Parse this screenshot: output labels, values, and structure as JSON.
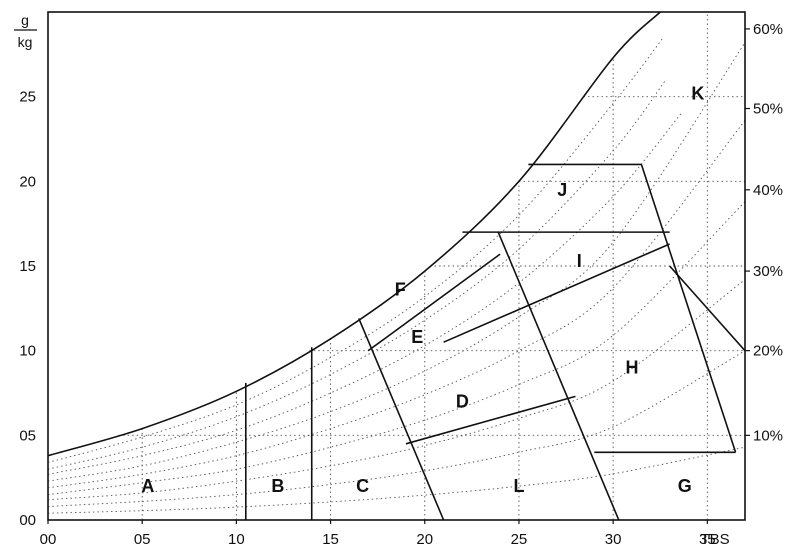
{
  "chart_data": {
    "type": "psychrometric",
    "x_axis": {
      "unit_label": "TBS",
      "range": [
        0,
        37
      ],
      "ticks": [
        {
          "value": 0,
          "label": "00"
        },
        {
          "value": 5,
          "label": "05"
        },
        {
          "value": 10,
          "label": "10"
        },
        {
          "value": 15,
          "label": "15"
        },
        {
          "value": 20,
          "label": "20"
        },
        {
          "value": 25,
          "label": "25"
        },
        {
          "value": 30,
          "label": "30"
        },
        {
          "value": 35,
          "label": "35"
        }
      ]
    },
    "y_axis": {
      "unit_top": "g",
      "unit_bottom": "kg",
      "range": [
        0,
        30
      ],
      "ticks": [
        {
          "value": 0,
          "label": "00"
        },
        {
          "value": 5,
          "label": "05"
        },
        {
          "value": 10,
          "label": "10"
        },
        {
          "value": 15,
          "label": "15"
        },
        {
          "value": 20,
          "label": "20"
        },
        {
          "value": 25,
          "label": "25"
        }
      ]
    },
    "saturation_curve": [
      [
        0,
        3.8
      ],
      [
        5,
        5.4
      ],
      [
        10,
        7.6
      ],
      [
        15,
        10.7
      ],
      [
        20,
        14.7
      ],
      [
        25,
        20.0
      ],
      [
        30,
        27.3
      ],
      [
        32.5,
        30
      ]
    ],
    "rh_lines": [
      {
        "label": "10%",
        "points": [
          [
            0,
            0.4
          ],
          [
            5,
            0.55
          ],
          [
            10,
            0.76
          ],
          [
            15,
            1.07
          ],
          [
            20,
            1.47
          ],
          [
            25,
            2.0
          ],
          [
            30,
            2.73
          ],
          [
            37,
            4.3
          ]
        ]
      },
      {
        "label": "20%",
        "points": [
          [
            0,
            0.8
          ],
          [
            5,
            1.1
          ],
          [
            10,
            1.5
          ],
          [
            15,
            2.1
          ],
          [
            20,
            2.9
          ],
          [
            25,
            4.0
          ],
          [
            30,
            5.5
          ],
          [
            37,
            10
          ]
        ]
      },
      {
        "label": "30%",
        "points": [
          [
            0,
            1.2
          ],
          [
            5,
            1.6
          ],
          [
            10,
            2.3
          ],
          [
            15,
            3.2
          ],
          [
            20,
            4.4
          ],
          [
            25,
            6.0
          ],
          [
            30,
            8.2
          ],
          [
            37,
            14.2
          ]
        ]
      },
      {
        "label": "40%",
        "points": [
          [
            0,
            1.5
          ],
          [
            5,
            2.2
          ],
          [
            10,
            3.0
          ],
          [
            15,
            4.3
          ],
          [
            20,
            5.9
          ],
          [
            25,
            8.0
          ],
          [
            30,
            10.9
          ],
          [
            37,
            18.8
          ]
        ]
      },
      {
        "label": "50%",
        "points": [
          [
            0,
            1.9
          ],
          [
            5,
            2.7
          ],
          [
            10,
            3.8
          ],
          [
            15,
            5.4
          ],
          [
            20,
            7.4
          ],
          [
            25,
            10.0
          ],
          [
            30,
            13.7
          ],
          [
            37,
            23.6
          ]
        ]
      },
      {
        "label": "60%",
        "points": [
          [
            0,
            2.3
          ],
          [
            5,
            3.2
          ],
          [
            10,
            4.6
          ],
          [
            15,
            6.4
          ],
          [
            20,
            8.8
          ],
          [
            25,
            12.0
          ],
          [
            30,
            16.4
          ],
          [
            37,
            28.2
          ]
        ]
      },
      {
        "label": "",
        "points": [
          [
            0,
            2.7
          ],
          [
            5,
            3.8
          ],
          [
            10,
            5.3
          ],
          [
            15,
            7.5
          ],
          [
            20,
            10.3
          ],
          [
            25,
            14.0
          ],
          [
            30,
            19.1
          ],
          [
            33.6,
            24
          ]
        ]
      },
      {
        "label": "",
        "points": [
          [
            0,
            3.0
          ],
          [
            5,
            4.3
          ],
          [
            10,
            6.1
          ],
          [
            15,
            8.6
          ],
          [
            20,
            11.8
          ],
          [
            25,
            16.0
          ],
          [
            30,
            21.8
          ],
          [
            32.8,
            26
          ]
        ]
      },
      {
        "label": "",
        "points": [
          [
            0,
            3.4
          ],
          [
            5,
            4.9
          ],
          [
            10,
            6.8
          ],
          [
            15,
            9.6
          ],
          [
            20,
            13.2
          ],
          [
            25,
            18.0
          ],
          [
            30,
            24.6
          ],
          [
            32.6,
            28.4
          ]
        ]
      }
    ],
    "rh_label_positions": [
      {
        "label": "10%",
        "y": 5
      },
      {
        "label": "20%",
        "y": 10
      },
      {
        "label": "30%",
        "y": 14.7
      },
      {
        "label": "40%",
        "y": 19.5
      },
      {
        "label": "50%",
        "y": 24.3
      },
      {
        "label": "60%",
        "y": 29
      }
    ],
    "zone_boundaries": [
      [
        [
          10.5,
          0
        ],
        [
          10.5,
          8.1
        ]
      ],
      [
        [
          14,
          0
        ],
        [
          14,
          10.2
        ]
      ],
      [
        [
          16.5,
          11.9
        ],
        [
          21,
          0
        ]
      ],
      [
        [
          23.9,
          17
        ],
        [
          30.3,
          0
        ]
      ],
      [
        [
          22,
          17
        ],
        [
          33,
          17
        ]
      ],
      [
        [
          25.5,
          21
        ],
        [
          31.5,
          21
        ]
      ],
      [
        [
          31.5,
          21
        ],
        [
          36.5,
          4
        ]
      ],
      [
        [
          29,
          4
        ],
        [
          36.5,
          4
        ]
      ],
      [
        [
          19,
          4.5
        ],
        [
          28,
          7.3
        ]
      ],
      [
        [
          17,
          10
        ],
        [
          24,
          15.7
        ]
      ],
      [
        [
          21,
          10.5
        ],
        [
          33,
          16.3
        ]
      ],
      [
        [
          33,
          15
        ],
        [
          37,
          10
        ]
      ]
    ],
    "zones": [
      {
        "label": "A",
        "x": 5.3,
        "y": 2
      },
      {
        "label": "B",
        "x": 12.2,
        "y": 2
      },
      {
        "label": "C",
        "x": 16.7,
        "y": 2
      },
      {
        "label": "D",
        "x": 22,
        "y": 7
      },
      {
        "label": "E",
        "x": 19.6,
        "y": 10.8
      },
      {
        "label": "F",
        "x": 18.7,
        "y": 13.6
      },
      {
        "label": "G",
        "x": 33.8,
        "y": 2
      },
      {
        "label": "H",
        "x": 31,
        "y": 9
      },
      {
        "label": "I",
        "x": 28.2,
        "y": 15.3
      },
      {
        "label": "J",
        "x": 27.3,
        "y": 19.5
      },
      {
        "label": "K",
        "x": 34.5,
        "y": 25.2
      },
      {
        "label": "L",
        "x": 25,
        "y": 2
      }
    ]
  }
}
